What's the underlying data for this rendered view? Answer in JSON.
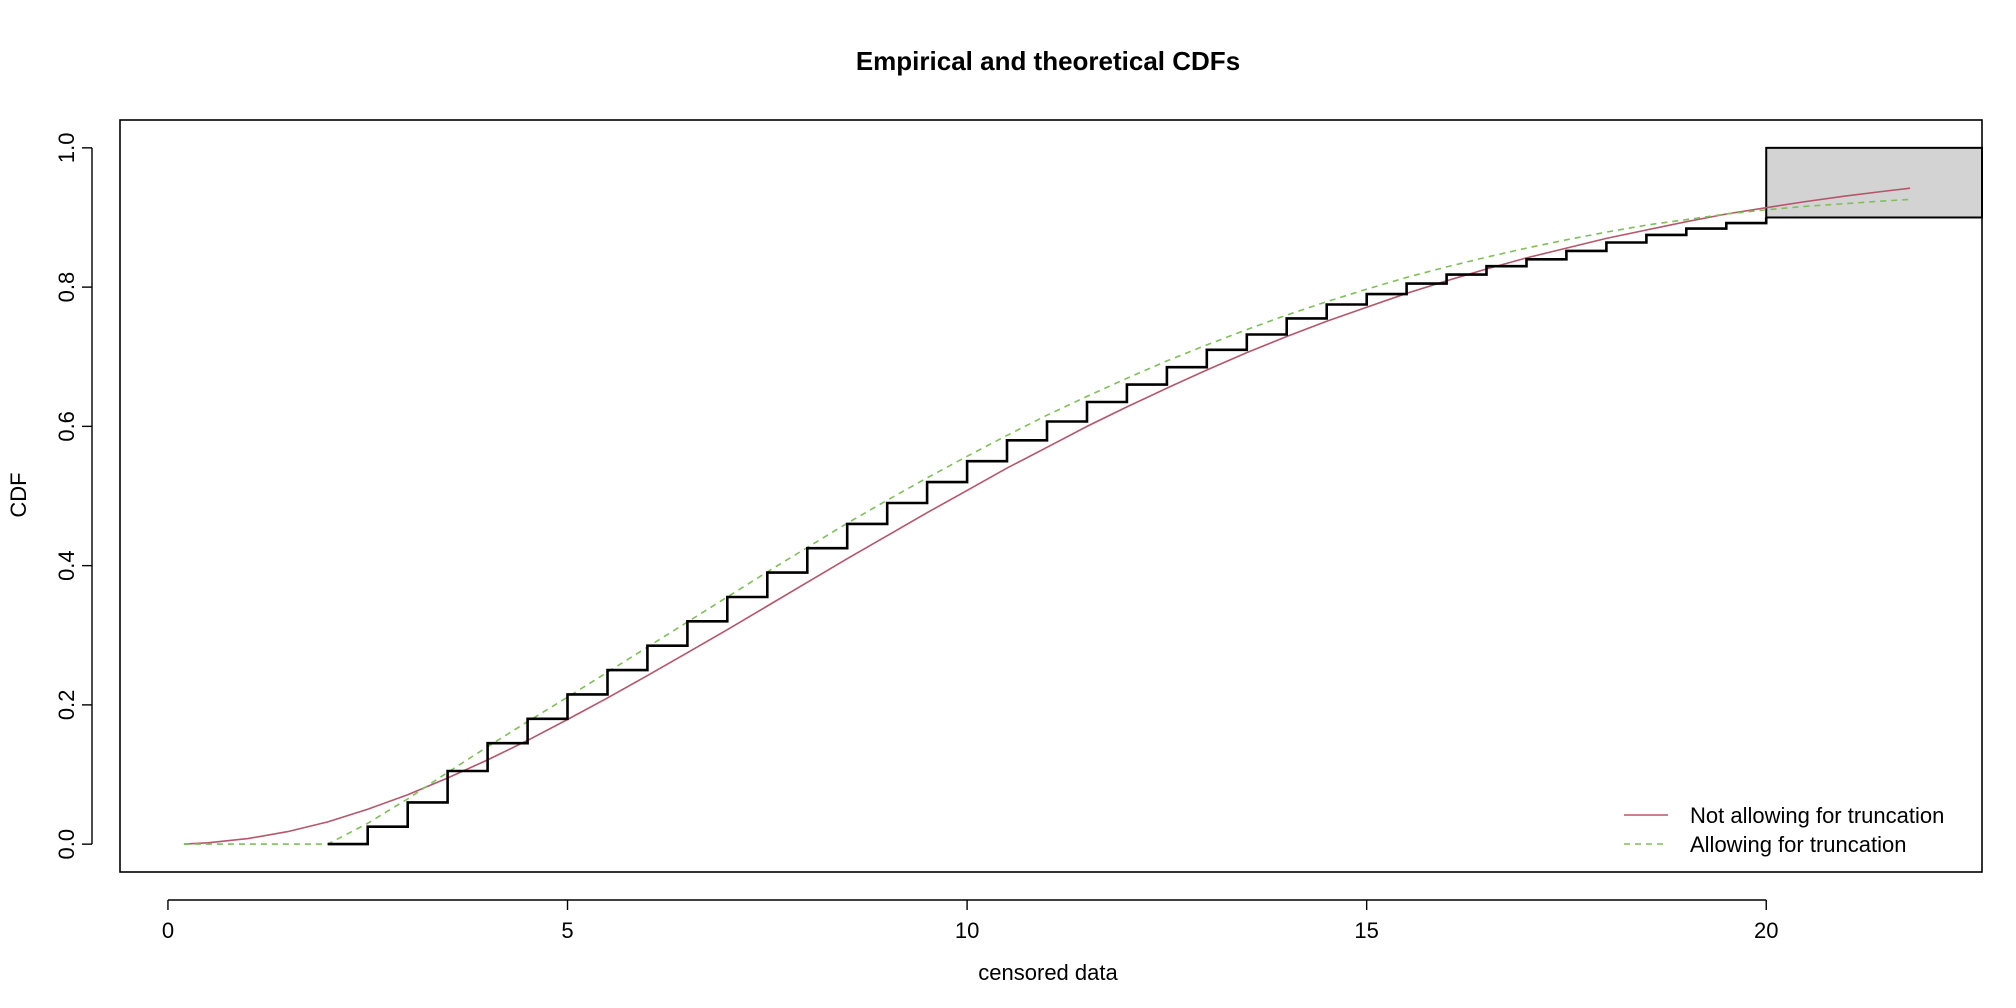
{
  "chart_data": {
    "type": "line",
    "title": "Empirical and theoretical CDFs",
    "xlabel": "censored data",
    "ylabel": "CDF",
    "xlim": [
      -0.6,
      22.7
    ],
    "ylim": [
      -0.04,
      1.04
    ],
    "x_ticks": [
      0,
      5,
      10,
      15,
      20
    ],
    "x_tick_labels": [
      "0",
      "5",
      "10",
      "15",
      "20"
    ],
    "y_ticks": [
      0.0,
      0.2,
      0.4,
      0.6,
      0.8,
      1.0
    ],
    "y_tick_labels": [
      "0.0",
      "0.2",
      "0.4",
      "0.6",
      "0.8",
      "1.0"
    ],
    "grid": false,
    "legend_position": "bottom-right",
    "empirical": {
      "color": "#000000",
      "x": [
        2.0,
        2.5,
        3.0,
        3.5,
        4.0,
        4.5,
        5.0,
        5.5,
        6.0,
        6.5,
        7.0,
        7.5,
        8.0,
        8.5,
        9.0,
        9.5,
        10.0,
        10.5,
        11.0,
        11.5,
        12.0,
        12.5,
        13.0,
        13.5,
        14.0,
        14.5,
        15.0,
        15.5,
        16.0,
        16.5,
        17.0,
        17.5,
        18.0,
        18.5,
        19.0,
        19.5,
        20.0
      ],
      "y": [
        0.0,
        0.025,
        0.06,
        0.105,
        0.145,
        0.18,
        0.215,
        0.25,
        0.285,
        0.32,
        0.355,
        0.39,
        0.425,
        0.46,
        0.49,
        0.52,
        0.55,
        0.58,
        0.607,
        0.635,
        0.66,
        0.685,
        0.71,
        0.732,
        0.755,
        0.775,
        0.79,
        0.805,
        0.818,
        0.83,
        0.84,
        0.852,
        0.864,
        0.875,
        0.884,
        0.892,
        0.9
      ]
    },
    "censored_box": {
      "x": [
        20.0,
        22.7
      ],
      "y": [
        0.9,
        1.0
      ],
      "fill": "#d3d3d3"
    },
    "series": [
      {
        "name": "Not allowing for truncation",
        "color": "#b5566a",
        "dash": "solid",
        "x": [
          0.2,
          0.5,
          1.0,
          1.5,
          2.0,
          2.5,
          3.0,
          3.5,
          4.0,
          4.5,
          5.0,
          5.5,
          6.0,
          6.5,
          7.0,
          7.5,
          8.0,
          8.5,
          9.0,
          9.5,
          10.0,
          10.5,
          11.0,
          11.5,
          12.0,
          12.5,
          13.0,
          13.5,
          14.0,
          14.5,
          15.0,
          15.5,
          16.0,
          16.5,
          17.0,
          17.5,
          18.0,
          18.5,
          19.0,
          19.5,
          20.0,
          20.5,
          21.0,
          21.5,
          21.8
        ],
        "y": [
          0.0,
          0.002,
          0.008,
          0.018,
          0.032,
          0.05,
          0.071,
          0.095,
          0.121,
          0.149,
          0.179,
          0.21,
          0.242,
          0.275,
          0.308,
          0.342,
          0.376,
          0.41,
          0.443,
          0.476,
          0.508,
          0.54,
          0.57,
          0.6,
          0.628,
          0.655,
          0.681,
          0.706,
          0.729,
          0.751,
          0.771,
          0.791,
          0.809,
          0.826,
          0.842,
          0.856,
          0.87,
          0.882,
          0.894,
          0.905,
          0.914,
          0.923,
          0.931,
          0.938,
          0.942
        ]
      },
      {
        "name": "Allowing for truncation",
        "color": "#7fbf5a",
        "dash": "dashed",
        "x": [
          0.2,
          2.0,
          2.5,
          3.0,
          3.5,
          4.0,
          4.5,
          5.0,
          5.5,
          6.0,
          6.5,
          7.0,
          7.5,
          8.0,
          8.5,
          9.0,
          9.5,
          10.0,
          10.5,
          11.0,
          11.5,
          12.0,
          12.5,
          13.0,
          13.5,
          14.0,
          14.5,
          15.0,
          15.5,
          16.0,
          16.5,
          17.0,
          17.5,
          18.0,
          18.5,
          19.0,
          19.5,
          20.0,
          20.5,
          21.0,
          21.5,
          21.8
        ],
        "y": [
          0.0,
          0.0,
          0.03,
          0.065,
          0.103,
          0.14,
          0.176,
          0.211,
          0.247,
          0.283,
          0.319,
          0.355,
          0.391,
          0.426,
          0.461,
          0.494,
          0.526,
          0.557,
          0.587,
          0.616,
          0.643,
          0.669,
          0.694,
          0.717,
          0.739,
          0.76,
          0.779,
          0.797,
          0.814,
          0.829,
          0.843,
          0.856,
          0.868,
          0.879,
          0.889,
          0.897,
          0.905,
          0.911,
          0.916,
          0.92,
          0.924,
          0.926
        ]
      }
    ]
  }
}
